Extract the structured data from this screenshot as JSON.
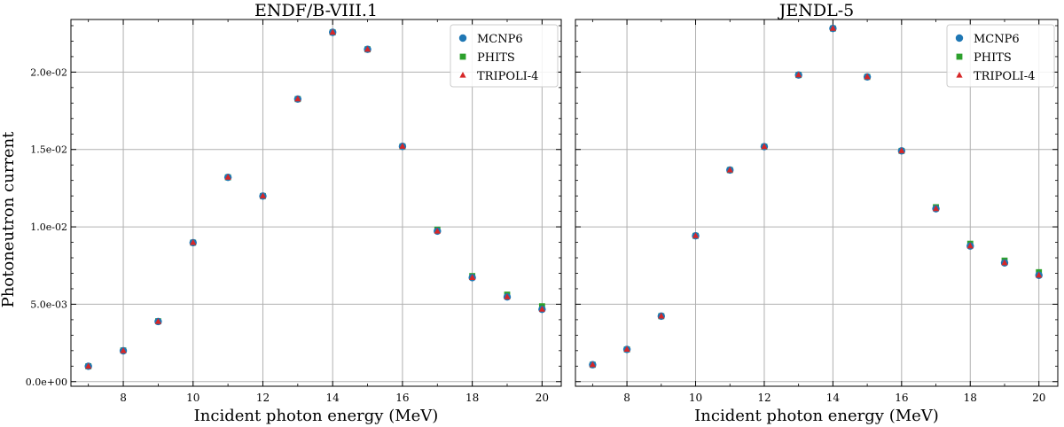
{
  "figure": {
    "ylabel": "Photoneutron current",
    "ytick_labels": [
      "0.0e+00",
      "5.0e-03",
      "1.0e-02",
      "1.5e-02",
      "2.0e-02"
    ]
  },
  "colors": {
    "MCNP6": "#1f77b4",
    "PHITS": "#2ca02c",
    "TRIPOLI-4": "#d62728",
    "grid": "#b0b0b0"
  },
  "chart_data": [
    {
      "type": "scatter",
      "title": "ENDF/B-VIII.1",
      "xlabel": "Incident photon energy (MeV)",
      "ylabel": "Photoneutron current",
      "xlim": [
        6.5,
        20.55
      ],
      "ylim": [
        -0.0003,
        0.0234
      ],
      "xticks": [
        8,
        10,
        12,
        14,
        16,
        18,
        20
      ],
      "yticks": [
        0.0,
        0.005,
        0.01,
        0.015,
        0.02
      ],
      "legend": "top-right",
      "x": [
        7,
        8,
        9,
        10,
        11,
        12,
        13,
        14,
        15,
        16,
        17,
        18,
        19,
        20
      ],
      "series": [
        {
          "name": "MCNP6",
          "marker": "circle",
          "values": [
            0.00099,
            0.00199,
            0.00388,
            0.00898,
            0.0132,
            0.01199,
            0.01826,
            0.02257,
            0.02147,
            0.0152,
            0.00972,
            0.00672,
            0.00547,
            0.00467
          ]
        },
        {
          "name": "PHITS",
          "marker": "square",
          "values": [
            0.00099,
            0.00201,
            0.0039,
            0.00898,
            0.0132,
            0.01199,
            0.01826,
            0.02257,
            0.02147,
            0.0152,
            0.00982,
            0.00682,
            0.00562,
            0.00487
          ]
        },
        {
          "name": "TRIPOLI-4",
          "marker": "triangle",
          "values": [
            0.00099,
            0.00199,
            0.00388,
            0.00898,
            0.0132,
            0.01199,
            0.01826,
            0.02257,
            0.02147,
            0.0152,
            0.00972,
            0.00672,
            0.00547,
            0.00467
          ]
        }
      ]
    },
    {
      "type": "scatter",
      "title": "JENDL-5",
      "xlabel": "Incident photon energy (MeV)",
      "ylabel": "Photoneutron current",
      "xlim": [
        6.5,
        20.55
      ],
      "ylim": [
        -0.0003,
        0.0234
      ],
      "xticks": [
        8,
        10,
        12,
        14,
        16,
        18,
        20
      ],
      "yticks": [
        0.0,
        0.005,
        0.01,
        0.015,
        0.02
      ],
      "legend": "top-right",
      "x": [
        7,
        8,
        9,
        10,
        11,
        12,
        13,
        14,
        15,
        16,
        17,
        18,
        19,
        20
      ],
      "series": [
        {
          "name": "MCNP6",
          "marker": "circle",
          "values": [
            0.00109,
            0.00208,
            0.00423,
            0.00942,
            0.01367,
            0.01518,
            0.01981,
            0.02282,
            0.01969,
            0.01491,
            0.01117,
            0.00876,
            0.00767,
            0.00687
          ]
        },
        {
          "name": "PHITS",
          "marker": "square",
          "values": [
            0.00109,
            0.00208,
            0.00423,
            0.00942,
            0.01367,
            0.01518,
            0.01981,
            0.02282,
            0.01969,
            0.01491,
            0.01127,
            0.00891,
            0.00782,
            0.00707
          ]
        },
        {
          "name": "TRIPOLI-4",
          "marker": "triangle",
          "values": [
            0.00109,
            0.00208,
            0.00423,
            0.00942,
            0.01367,
            0.01518,
            0.01981,
            0.02282,
            0.01969,
            0.01491,
            0.01117,
            0.00876,
            0.00767,
            0.00687
          ]
        }
      ]
    }
  ]
}
